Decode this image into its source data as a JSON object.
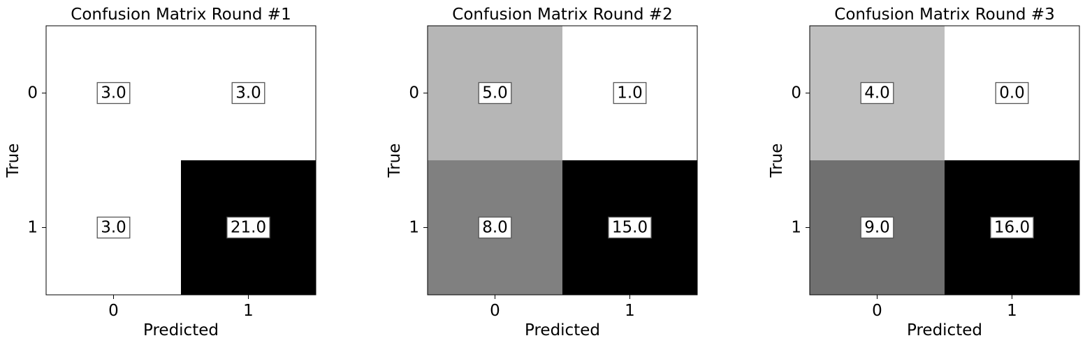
{
  "chart_data": [
    {
      "type": "heatmap",
      "title": "Confusion Matrix Round #1",
      "xlabel": "Predicted",
      "ylabel": "True",
      "x_categories": [
        "0",
        "1"
      ],
      "y_categories": [
        "0",
        "1"
      ],
      "values": [
        [
          3,
          3
        ],
        [
          3,
          21
        ]
      ],
      "cell_labels": [
        [
          "3.0",
          "3.0"
        ],
        [
          "3.0",
          "21.0"
        ]
      ],
      "colormap": "gray_r",
      "grid": false
    },
    {
      "type": "heatmap",
      "title": "Confusion Matrix Round #2",
      "xlabel": "Predicted",
      "ylabel": "True",
      "x_categories": [
        "0",
        "1"
      ],
      "y_categories": [
        "0",
        "1"
      ],
      "values": [
        [
          5,
          1
        ],
        [
          8,
          15
        ]
      ],
      "cell_labels": [
        [
          "5.0",
          "1.0"
        ],
        [
          "8.0",
          "15.0"
        ]
      ],
      "colormap": "gray_r",
      "grid": false
    },
    {
      "type": "heatmap",
      "title": "Confusion Matrix Round #3",
      "xlabel": "Predicted",
      "ylabel": "True",
      "x_categories": [
        "0",
        "1"
      ],
      "y_categories": [
        "0",
        "1"
      ],
      "values": [
        [
          4,
          0
        ],
        [
          9,
          16
        ]
      ],
      "cell_labels": [
        [
          "4.0",
          "0.0"
        ],
        [
          "9.0",
          "16.0"
        ]
      ],
      "colormap": "gray_r",
      "grid": false
    }
  ]
}
